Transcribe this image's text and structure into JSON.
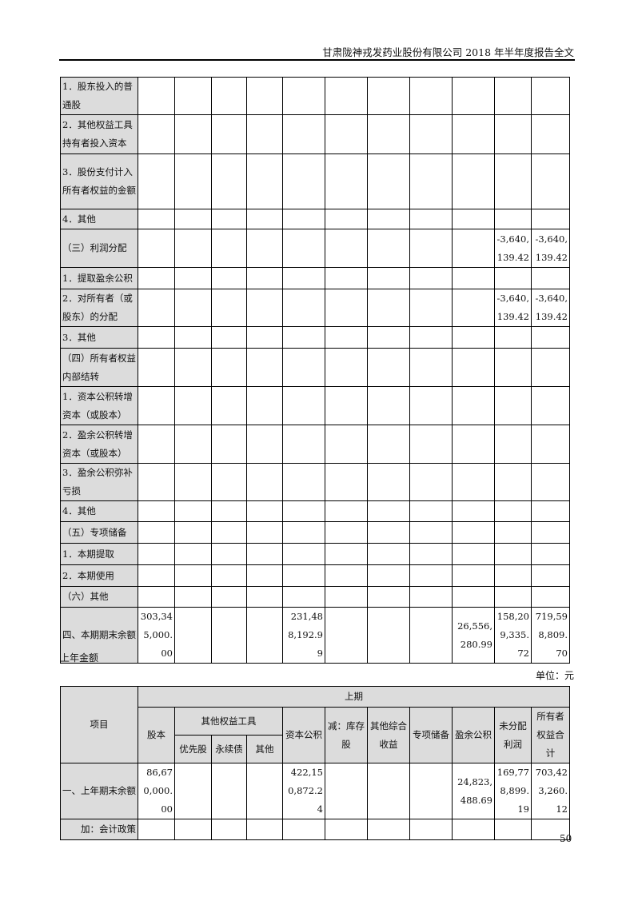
{
  "header": {
    "title": "甘肃陇神戎发药业股份有限公司 2018 年半年度报告全文"
  },
  "table1": {
    "rows": [
      {
        "label": "1．股东投入的普通股",
        "values": [
          "",
          "",
          "",
          "",
          "",
          "",
          "",
          "",
          "",
          "",
          ""
        ]
      },
      {
        "label": "2．其他权益工具持有者投入资本",
        "values": [
          "",
          "",
          "",
          "",
          "",
          "",
          "",
          "",
          "",
          "",
          ""
        ]
      },
      {
        "label": "3．股份支付计入所有者权益的金额",
        "values": [
          "",
          "",
          "",
          "",
          "",
          "",
          "",
          "",
          "",
          "",
          ""
        ]
      },
      {
        "label": "4．其他",
        "values": [
          "",
          "",
          "",
          "",
          "",
          "",
          "",
          "",
          "",
          "",
          ""
        ]
      },
      {
        "label": "（三）利润分配",
        "values": [
          "",
          "",
          "",
          "",
          "",
          "",
          "",
          "",
          "",
          "-3,640,139.42",
          "-3,640,139.42"
        ]
      },
      {
        "label": "1．提取盈余公积",
        "values": [
          "",
          "",
          "",
          "",
          "",
          "",
          "",
          "",
          "",
          "",
          ""
        ]
      },
      {
        "label": "2．对所有者（或股东）的分配",
        "values": [
          "",
          "",
          "",
          "",
          "",
          "",
          "",
          "",
          "",
          "-3,640,139.42",
          "-3,640,139.42"
        ]
      },
      {
        "label": "3．其他",
        "values": [
          "",
          "",
          "",
          "",
          "",
          "",
          "",
          "",
          "",
          "",
          ""
        ]
      },
      {
        "label": "（四）所有者权益内部结转",
        "values": [
          "",
          "",
          "",
          "",
          "",
          "",
          "",
          "",
          "",
          "",
          ""
        ]
      },
      {
        "label": "1．资本公积转增资本（或股本）",
        "values": [
          "",
          "",
          "",
          "",
          "",
          "",
          "",
          "",
          "",
          "",
          ""
        ]
      },
      {
        "label": "2．盈余公积转增资本（或股本）",
        "values": [
          "",
          "",
          "",
          "",
          "",
          "",
          "",
          "",
          "",
          "",
          ""
        ]
      },
      {
        "label": "3．盈余公积弥补亏损",
        "values": [
          "",
          "",
          "",
          "",
          "",
          "",
          "",
          "",
          "",
          "",
          ""
        ]
      },
      {
        "label": "4．其他",
        "values": [
          "",
          "",
          "",
          "",
          "",
          "",
          "",
          "",
          "",
          "",
          ""
        ]
      },
      {
        "label": "（五）专项储备",
        "values": [
          "",
          "",
          "",
          "",
          "",
          "",
          "",
          "",
          "",
          "",
          ""
        ]
      },
      {
        "label": "1．本期提取",
        "values": [
          "",
          "",
          "",
          "",
          "",
          "",
          "",
          "",
          "",
          "",
          ""
        ]
      },
      {
        "label": "2．本期使用",
        "values": [
          "",
          "",
          "",
          "",
          "",
          "",
          "",
          "",
          "",
          "",
          ""
        ]
      },
      {
        "label": "（六）其他",
        "values": [
          "",
          "",
          "",
          "",
          "",
          "",
          "",
          "",
          "",
          "",
          ""
        ]
      },
      {
        "label": "四、本期期末余额",
        "values": [
          "303,345,000.00",
          "",
          "",
          "",
          "231,488,192.99",
          "",
          "",
          "",
          "26,556,280.99",
          "158,209,335.72",
          "719,598,809.70"
        ]
      }
    ]
  },
  "section_title": "上年金额",
  "unit": "单位：元",
  "table2": {
    "period": "上期",
    "item": "项目",
    "share_capital": "股本",
    "other_equity": "其他权益工具",
    "preferred": "优先股",
    "perpetual": "永续债",
    "other": "其他",
    "capital_reserve": "资本公积",
    "treasury": "减：库存股",
    "oci": "其他综合收益",
    "special_reserve": "专项储备",
    "surplus": "盈余公积",
    "undistributed": "未分配利润",
    "total": "所有者权益合计",
    "rows": [
      {
        "label": "一、上年期末余额",
        "values": [
          "86,670,000.00",
          "",
          "",
          "",
          "422,150,872.24",
          "",
          "",
          "",
          "24,823,488.69",
          "169,778,899.19",
          "703,423,260.12"
        ]
      },
      {
        "label": "加：会计政策",
        "values": [
          "",
          "",
          "",
          "",
          "",
          "",
          "",
          "",
          "",
          "",
          ""
        ]
      }
    ]
  },
  "page_number": "50"
}
